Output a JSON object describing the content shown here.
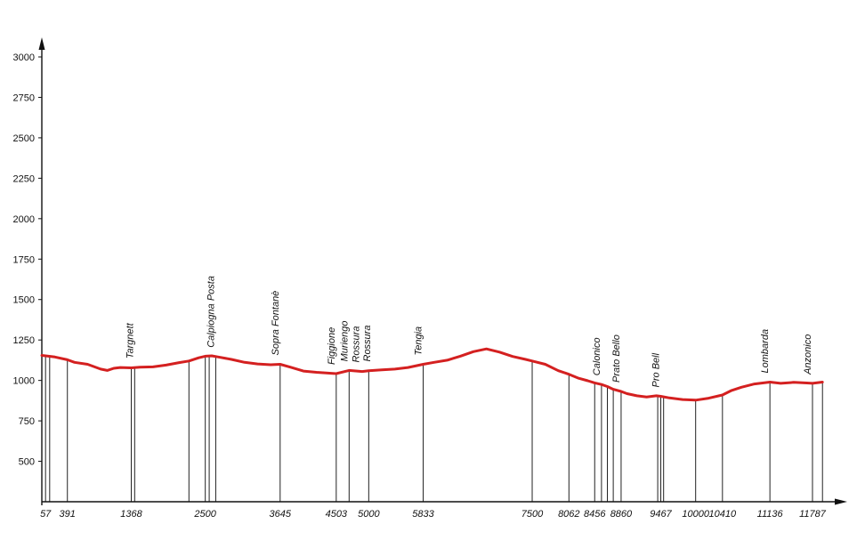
{
  "chart_data": {
    "type": "line",
    "title": "",
    "xlabel": "",
    "ylabel": "",
    "ylim": [
      250,
      3000
    ],
    "xlim": [
      0,
      12250
    ],
    "grid": false,
    "legend": "none",
    "colors": {
      "profile": "#d42020",
      "axis": "#111111",
      "markers": "#222222"
    },
    "y_ticks": [
      500,
      750,
      1000,
      1250,
      1500,
      1750,
      2000,
      2250,
      2500,
      2750,
      3000
    ],
    "x_tick_labels": [
      {
        "x": 57,
        "label": "57"
      },
      {
        "x": 391,
        "label": "391"
      },
      {
        "x": 1368,
        "label": "1368"
      },
      {
        "x": 2500,
        "label": "2500"
      },
      {
        "x": 3645,
        "label": "3645"
      },
      {
        "x": 4503,
        "label": "4503"
      },
      {
        "x": 5000,
        "label": "5000"
      },
      {
        "x": 5833,
        "label": "5833"
      },
      {
        "x": 7500,
        "label": "7500"
      },
      {
        "x": 8062,
        "label": "8062"
      },
      {
        "x": 8456,
        "label": "8456"
      },
      {
        "x": 8860,
        "label": "8860"
      },
      {
        "x": 9467,
        "label": "9467"
      },
      {
        "x": 10000,
        "label": "10000"
      },
      {
        "x": 10410,
        "label": "10410"
      },
      {
        "x": 11136,
        "label": "11136"
      },
      {
        "x": 11787,
        "label": "11787"
      }
    ],
    "marker_lines": [
      57,
      120,
      391,
      1368,
      1420,
      2250,
      2500,
      2560,
      2660,
      3645,
      4503,
      4700,
      5000,
      5833,
      7500,
      8062,
      8456,
      8560,
      8650,
      8740,
      8860,
      9420,
      9467,
      9510,
      10000,
      10410,
      11136,
      11787,
      11940
    ],
    "places": [
      {
        "name": "Targnett",
        "x": 1420
      },
      {
        "name": "Calpiogna Posta",
        "x": 2660
      },
      {
        "name": "Sopra Fontanè",
        "x": 3645
      },
      {
        "name": "Figgione",
        "x": 4503
      },
      {
        "name": "Muriengo",
        "x": 4700
      },
      {
        "name": "Rossura",
        "x": 4880
      },
      {
        "name": "Rossura",
        "x": 5050
      },
      {
        "name": "Tengia",
        "x": 5833
      },
      {
        "name": "Calonico",
        "x": 8560
      },
      {
        "name": "Prato Bello",
        "x": 8860
      },
      {
        "name": "Pro Bell",
        "x": 9467
      },
      {
        "name": "Lombarda",
        "x": 11136
      },
      {
        "name": "Anzonico",
        "x": 11787
      }
    ],
    "series": [
      {
        "x": [
          0,
          57,
          200,
          391,
          500,
          700,
          900,
          1000,
          1100,
          1200,
          1368,
          1500,
          1700,
          1900,
          2100,
          2250,
          2400,
          2500,
          2600,
          2700,
          2900,
          3100,
          3300,
          3500,
          3645,
          3800,
          4000,
          4200,
          4400,
          4503,
          4700,
          4900,
          5000,
          5200,
          5400,
          5600,
          5833,
          6000,
          6200,
          6400,
          6600,
          6800,
          7000,
          7200,
          7400,
          7500,
          7700,
          7900,
          8062,
          8200,
          8350,
          8456,
          8560,
          8650,
          8740,
          8860,
          8950,
          9100,
          9250,
          9400,
          9467,
          9600,
          9800,
          10000,
          10200,
          10410,
          10550,
          10700,
          10900,
          11136,
          11300,
          11500,
          11700,
          11787,
          11940
        ],
        "y": [
          1155,
          1152,
          1145,
          1128,
          1112,
          1100,
          1070,
          1062,
          1075,
          1080,
          1078,
          1082,
          1084,
          1095,
          1110,
          1120,
          1140,
          1150,
          1152,
          1145,
          1130,
          1112,
          1102,
          1097,
          1100,
          1082,
          1058,
          1050,
          1045,
          1042,
          1062,
          1055,
          1060,
          1065,
          1070,
          1080,
          1100,
          1112,
          1125,
          1150,
          1178,
          1195,
          1175,
          1148,
          1130,
          1120,
          1100,
          1060,
          1038,
          1015,
          998,
          985,
          975,
          962,
          945,
          932,
          918,
          905,
          898,
          905,
          902,
          892,
          882,
          878,
          890,
          910,
          938,
          958,
          978,
          990,
          982,
          988,
          984,
          982,
          990
        ]
      }
    ]
  }
}
